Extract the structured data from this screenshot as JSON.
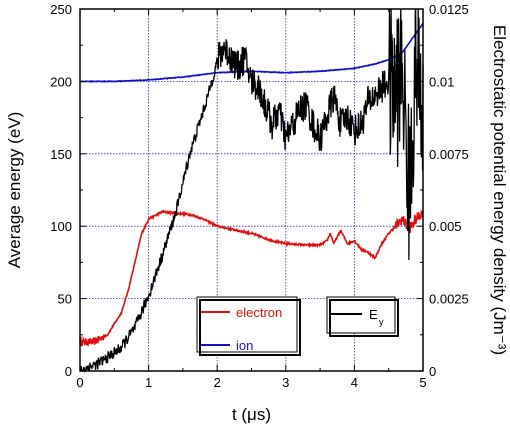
{
  "chart_data": {
    "type": "line",
    "title": "",
    "xlabel": "t (μs)",
    "ylabel": "Average energy (eV)",
    "y2label": "Electrostatic potential energy density (Jm⁻³)",
    "xlim": [
      0,
      5
    ],
    "ylim": [
      0,
      250
    ],
    "y2lim": [
      0,
      0.0125
    ],
    "x_ticks": [
      "0",
      "1",
      "2",
      "3",
      "4",
      "5"
    ],
    "y_ticks": [
      "0",
      "50",
      "100",
      "150",
      "200",
      "250"
    ],
    "y2_ticks": [
      "0",
      "0.0025",
      "0.005",
      "0.0075",
      "0.01",
      "0.0125"
    ],
    "grid": true,
    "series": [
      {
        "name": "electron",
        "axis": "left",
        "color": "#e01010",
        "points": [
          [
            0,
            20
          ],
          [
            0.2,
            20
          ],
          [
            0.4,
            25
          ],
          [
            0.6,
            40
          ],
          [
            0.7,
            55
          ],
          [
            0.8,
            75
          ],
          [
            0.9,
            95
          ],
          [
            1.0,
            105
          ],
          [
            1.2,
            110
          ],
          [
            1.4,
            109
          ],
          [
            1.6,
            108
          ],
          [
            1.8,
            105
          ],
          [
            2.0,
            100
          ],
          [
            2.2,
            98
          ],
          [
            2.5,
            95
          ],
          [
            2.8,
            90
          ],
          [
            3.0,
            88
          ],
          [
            3.3,
            87
          ],
          [
            3.5,
            87
          ],
          [
            3.6,
            90
          ],
          [
            3.65,
            95
          ],
          [
            3.7,
            88
          ],
          [
            3.8,
            97
          ],
          [
            3.9,
            88
          ],
          [
            4.0,
            90
          ],
          [
            4.1,
            84
          ],
          [
            4.2,
            82
          ],
          [
            4.3,
            78
          ],
          [
            4.4,
            88
          ],
          [
            4.5,
            95
          ],
          [
            4.6,
            100
          ],
          [
            4.7,
            105
          ],
          [
            4.8,
            98
          ],
          [
            4.9,
            105
          ],
          [
            5.0,
            110
          ]
        ]
      },
      {
        "name": "ion",
        "axis": "left",
        "color": "#1010cc",
        "points": [
          [
            0,
            200
          ],
          [
            0.5,
            200
          ],
          [
            1.0,
            201
          ],
          [
            1.5,
            203
          ],
          [
            2.0,
            206
          ],
          [
            2.5,
            207
          ],
          [
            3.0,
            206
          ],
          [
            3.5,
            207
          ],
          [
            4.0,
            209
          ],
          [
            4.3,
            212
          ],
          [
            4.5,
            215
          ],
          [
            4.7,
            220
          ],
          [
            4.85,
            230
          ],
          [
            5.0,
            240
          ]
        ]
      },
      {
        "name": "E_y",
        "axis": "right",
        "color": "#000000",
        "points": [
          [
            0,
            0
          ],
          [
            0.3,
            0.0003
          ],
          [
            0.6,
            0.0008
          ],
          [
            0.8,
            0.0015
          ],
          [
            1.0,
            0.0026
          ],
          [
            1.2,
            0.004
          ],
          [
            1.4,
            0.0055
          ],
          [
            1.6,
            0.0075
          ],
          [
            1.8,
            0.009
          ],
          [
            1.9,
            0.0098
          ],
          [
            2.0,
            0.0107
          ],
          [
            2.1,
            0.0112
          ],
          [
            2.2,
            0.0108
          ],
          [
            2.3,
            0.0105
          ],
          [
            2.4,
            0.0108
          ],
          [
            2.5,
            0.01
          ],
          [
            2.6,
            0.0098
          ],
          [
            2.7,
            0.0092
          ],
          [
            2.8,
            0.0085
          ],
          [
            2.9,
            0.009
          ],
          [
            3.0,
            0.008
          ],
          [
            3.1,
            0.0085
          ],
          [
            3.2,
            0.009
          ],
          [
            3.3,
            0.0092
          ],
          [
            3.4,
            0.0085
          ],
          [
            3.5,
            0.008
          ],
          [
            3.6,
            0.0088
          ],
          [
            3.7,
            0.0095
          ],
          [
            3.8,
            0.0085
          ],
          [
            3.9,
            0.0088
          ],
          [
            4.0,
            0.0083
          ],
          [
            4.1,
            0.0085
          ],
          [
            4.2,
            0.0093
          ],
          [
            4.3,
            0.0095
          ],
          [
            4.4,
            0.0098
          ],
          [
            4.5,
            0.01
          ],
          [
            4.6,
            0.0095
          ],
          [
            4.7,
            0.0105
          ],
          [
            4.8,
            0.006
          ],
          [
            4.9,
            0.011
          ],
          [
            5.0,
            0.008
          ]
        ]
      }
    ],
    "legend": {
      "box1": [
        {
          "label": "electron",
          "color": "#e01010"
        },
        {
          "label": "ion",
          "color": "#1010cc"
        }
      ],
      "box2": [
        {
          "label": "E",
          "sub": "y",
          "color": "#000000"
        }
      ]
    }
  }
}
